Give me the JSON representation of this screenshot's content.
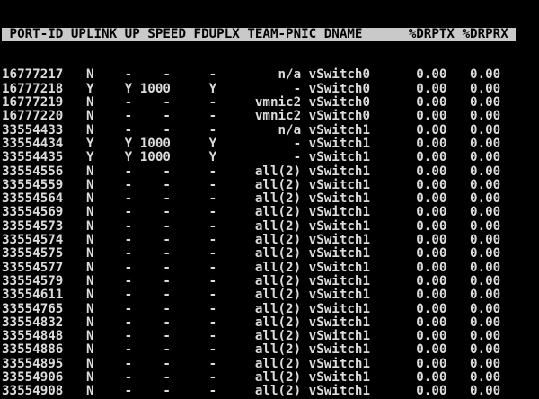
{
  "terminal": {
    "app": "esxtop network panel",
    "colors": {
      "background": "#000000",
      "text": "#dcdcdc",
      "header_background": "#c9c9c9",
      "header_text": "#000000"
    },
    "columns": [
      "PORT-ID",
      "UPLINK",
      "UP",
      "SPEED",
      "FDUPLX",
      "TEAM-PNIC",
      "DNAME",
      "%DRPTX",
      "%DRPRX"
    ],
    "rows": [
      [
        "16777217",
        "N",
        "-",
        "-",
        "-",
        "n/a",
        "vSwitch0",
        "0.00",
        "0.00"
      ],
      [
        "16777218",
        "Y",
        "Y",
        "1000",
        "Y",
        "-",
        "vSwitch0",
        "0.00",
        "0.00"
      ],
      [
        "16777219",
        "N",
        "-",
        "-",
        "-",
        "vmnic2",
        "vSwitch0",
        "0.00",
        "0.00"
      ],
      [
        "16777220",
        "N",
        "-",
        "-",
        "-",
        "vmnic2",
        "vSwitch0",
        "0.00",
        "0.00"
      ],
      [
        "33554433",
        "N",
        "-",
        "-",
        "-",
        "n/a",
        "vSwitch1",
        "0.00",
        "0.00"
      ],
      [
        "33554434",
        "Y",
        "Y",
        "1000",
        "Y",
        "-",
        "vSwitch1",
        "0.00",
        "0.00"
      ],
      [
        "33554435",
        "Y",
        "Y",
        "1000",
        "Y",
        "-",
        "vSwitch1",
        "0.00",
        "0.00"
      ],
      [
        "33554556",
        "N",
        "-",
        "-",
        "-",
        "all(2)",
        "vSwitch1",
        "0.00",
        "0.00"
      ],
      [
        "33554559",
        "N",
        "-",
        "-",
        "-",
        "all(2)",
        "vSwitch1",
        "0.00",
        "0.00"
      ],
      [
        "33554564",
        "N",
        "-",
        "-",
        "-",
        "all(2)",
        "vSwitch1",
        "0.00",
        "0.00"
      ],
      [
        "33554569",
        "N",
        "-",
        "-",
        "-",
        "all(2)",
        "vSwitch1",
        "0.00",
        "0.00"
      ],
      [
        "33554573",
        "N",
        "-",
        "-",
        "-",
        "all(2)",
        "vSwitch1",
        "0.00",
        "0.00"
      ],
      [
        "33554574",
        "N",
        "-",
        "-",
        "-",
        "all(2)",
        "vSwitch1",
        "0.00",
        "0.00"
      ],
      [
        "33554575",
        "N",
        "-",
        "-",
        "-",
        "all(2)",
        "vSwitch1",
        "0.00",
        "0.00"
      ],
      [
        "33554577",
        "N",
        "-",
        "-",
        "-",
        "all(2)",
        "vSwitch1",
        "0.00",
        "0.00"
      ],
      [
        "33554579",
        "N",
        "-",
        "-",
        "-",
        "all(2)",
        "vSwitch1",
        "0.00",
        "0.00"
      ],
      [
        "33554611",
        "N",
        "-",
        "-",
        "-",
        "all(2)",
        "vSwitch1",
        "0.00",
        "0.00"
      ],
      [
        "33554765",
        "N",
        "-",
        "-",
        "-",
        "all(2)",
        "vSwitch1",
        "0.00",
        "0.00"
      ],
      [
        "33554832",
        "N",
        "-",
        "-",
        "-",
        "all(2)",
        "vSwitch1",
        "0.00",
        "0.00"
      ],
      [
        "33554848",
        "N",
        "-",
        "-",
        "-",
        "all(2)",
        "vSwitch1",
        "0.00",
        "0.00"
      ],
      [
        "33554886",
        "N",
        "-",
        "-",
        "-",
        "all(2)",
        "vSwitch1",
        "0.00",
        "0.00"
      ],
      [
        "33554895",
        "N",
        "-",
        "-",
        "-",
        "all(2)",
        "vSwitch1",
        "0.00",
        "0.00"
      ],
      [
        "33554906",
        "N",
        "-",
        "-",
        "-",
        "all(2)",
        "vSwitch1",
        "0.00",
        "0.00"
      ],
      [
        "33554908",
        "N",
        "-",
        "-",
        "-",
        "all(2)",
        "vSwitch1",
        "0.00",
        "0.00"
      ]
    ]
  }
}
